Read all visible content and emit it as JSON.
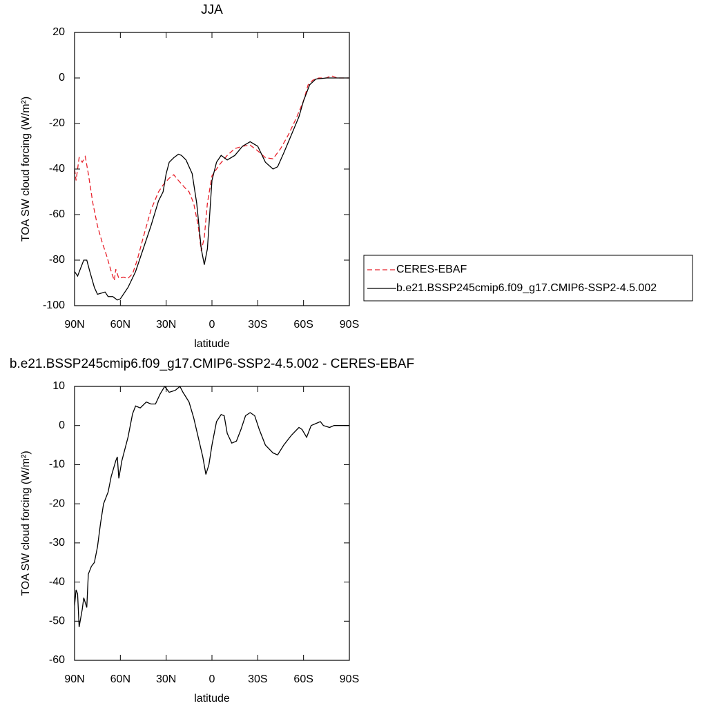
{
  "chart_data": [
    {
      "type": "line",
      "title": "JJA",
      "xlabel": "latitude",
      "ylabel": "TOA SW cloud forcing (W/m²)",
      "xlim": [
        90,
        -90
      ],
      "xticks": [
        {
          "value": 90,
          "label": "90N"
        },
        {
          "value": 60,
          "label": "60N"
        },
        {
          "value": 30,
          "label": "30N"
        },
        0,
        {
          "value": -30,
          "label": "30S"
        },
        {
          "value": -60,
          "label": "60S"
        },
        {
          "value": -90,
          "label": "90S"
        }
      ],
      "ylim": [
        -100,
        20
      ],
      "yticks": [
        20,
        0,
        -20,
        -40,
        -60,
        -80,
        -100
      ],
      "legend": "right",
      "series": [
        {
          "name": "CERES-EBAF",
          "color": "#e8202a",
          "line_style": "dashed",
          "x": [
            90,
            89,
            87,
            85,
            83,
            81,
            78,
            75,
            72,
            69,
            66,
            64,
            63,
            61,
            58,
            55,
            52,
            49,
            45,
            40,
            35,
            32,
            28,
            25,
            22,
            18,
            15,
            12,
            9,
            7,
            5,
            3,
            0,
            -5,
            -10,
            -15,
            -20,
            -25,
            -30,
            -35,
            -40,
            -45,
            -50,
            -55,
            -60,
            -63,
            -66,
            -70,
            -75,
            -78,
            -82,
            -90
          ],
          "values": [
            -40,
            -45,
            -35,
            -37,
            -34.5,
            -42,
            -55,
            -65,
            -72,
            -78,
            -85,
            -89,
            -84,
            -88,
            -87.5,
            -88,
            -86,
            -80,
            -70,
            -58,
            -50,
            -47,
            -44,
            -42.5,
            -45,
            -48,
            -50,
            -55,
            -65,
            -76,
            -70,
            -55,
            -43,
            -38,
            -34,
            -31,
            -30,
            -29.5,
            -32,
            -35,
            -35.5,
            -31,
            -25,
            -18,
            -10,
            -3,
            -1,
            0,
            0,
            1,
            0,
            0
          ]
        },
        {
          "name": "b.e21.BSSP245cmip6.f09_g17.CMIP6-SSP2-4.5.002",
          "color": "#000000",
          "line_style": "solid",
          "x": [
            90,
            88,
            84,
            82,
            80,
            77,
            75,
            70,
            68,
            65,
            62,
            60,
            55,
            50,
            45,
            40,
            35,
            32,
            30,
            28,
            25,
            22,
            20,
            17,
            13,
            10,
            7,
            5,
            3,
            1,
            0,
            -3,
            -6,
            -10,
            -15,
            -20,
            -25,
            -30,
            -35,
            -40,
            -43,
            -47,
            -52,
            -57,
            -60,
            -64,
            -68,
            -75,
            -90
          ],
          "values": [
            -85,
            -87,
            -80,
            -80,
            -85,
            -92,
            -95,
            -94,
            -96,
            -96,
            -97.5,
            -97,
            -92,
            -85,
            -75,
            -65,
            -54,
            -50,
            -42,
            -37,
            -35,
            -33.5,
            -34,
            -36,
            -42,
            -55,
            -75,
            -82,
            -75,
            -55,
            -45,
            -37,
            -34,
            -36,
            -34,
            -30,
            -28,
            -30,
            -37,
            -40,
            -39,
            -33,
            -25,
            -17,
            -10,
            -3,
            -0.5,
            0,
            0
          ]
        }
      ]
    },
    {
      "type": "line",
      "title": "b.e21.BSSP245cmip6.f09_g17.CMIP6-SSP2-4.5.002 - CERES-EBAF",
      "xlabel": "latitude",
      "ylabel": "TOA SW cloud forcing (W/m²)",
      "xlim": [
        90,
        -90
      ],
      "xticks": [
        {
          "value": 90,
          "label": "90N"
        },
        {
          "value": 60,
          "label": "60N"
        },
        {
          "value": 30,
          "label": "30N"
        },
        0,
        {
          "value": -30,
          "label": "30S"
        },
        {
          "value": -60,
          "label": "60S"
        },
        {
          "value": -90,
          "label": "90S"
        }
      ],
      "ylim": [
        -60,
        10
      ],
      "yticks": [
        10,
        0,
        -10,
        -20,
        -30,
        -40,
        -50,
        -60
      ],
      "series": [
        {
          "color": "#000000",
          "line_style": "solid",
          "x": [
            90,
            89,
            88,
            87,
            85,
            84,
            82,
            81,
            79,
            77,
            75,
            73,
            71,
            68,
            66,
            63,
            62,
            61,
            59,
            55,
            52,
            50,
            47,
            43,
            40,
            37,
            34,
            31,
            28,
            24,
            21,
            19,
            15,
            12,
            9,
            6,
            4,
            2,
            0,
            -3,
            -6,
            -8,
            -10,
            -13,
            -16,
            -19,
            -22,
            -25,
            -28,
            -31,
            -35,
            -40,
            -43,
            -47,
            -52,
            -57,
            -59,
            -62,
            -64,
            -65,
            -68,
            -71,
            -73,
            -77,
            -80,
            -83,
            -90
          ],
          "values": [
            -46,
            -42,
            -43,
            -51.5,
            -47,
            -44,
            -46.5,
            -38,
            -36,
            -35,
            -31,
            -25,
            -20,
            -17,
            -13,
            -9,
            -8,
            -13.5,
            -9,
            -3,
            3,
            5,
            4.5,
            6,
            5.5,
            5.5,
            8,
            10,
            8.5,
            9,
            10,
            8.5,
            6,
            2,
            -3,
            -8,
            -12.5,
            -10,
            -5,
            1,
            2.8,
            2.5,
            -2,
            -4.5,
            -4,
            -1,
            2.5,
            3.3,
            2.5,
            -1,
            -5,
            -7,
            -7.5,
            -5,
            -2.5,
            -0.5,
            -1,
            -3,
            -1,
            0,
            0.5,
            1,
            0,
            -0.5,
            0,
            0,
            0
          ]
        }
      ]
    }
  ]
}
